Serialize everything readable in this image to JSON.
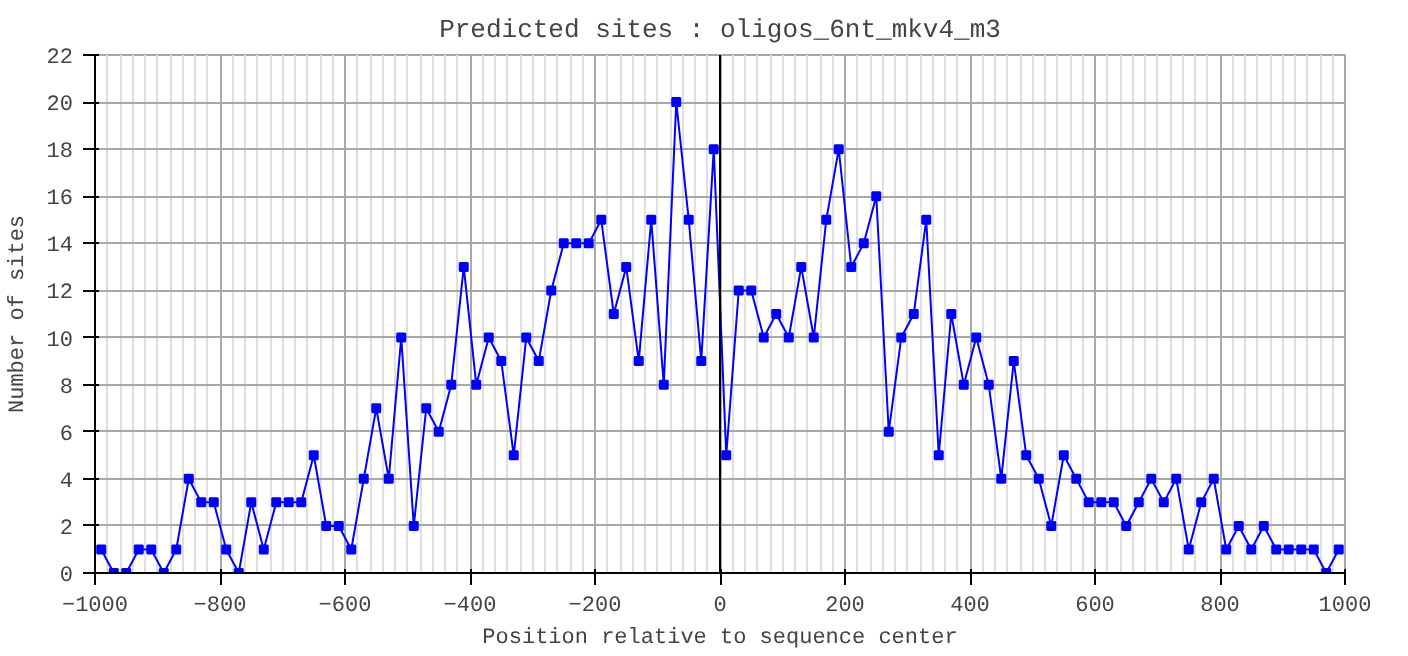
{
  "chart_data": {
    "type": "line",
    "title": "Predicted sites : oligos_6nt_mkv4_m3",
    "xlabel": "Position relative to sequence center",
    "ylabel": "Number of sites",
    "x": [
      -990,
      -970,
      -950,
      -930,
      -910,
      -890,
      -870,
      -850,
      -830,
      -810,
      -790,
      -770,
      -750,
      -730,
      -710,
      -690,
      -670,
      -650,
      -630,
      -610,
      -590,
      -570,
      -550,
      -530,
      -510,
      -490,
      -470,
      -450,
      -430,
      -410,
      -390,
      -370,
      -350,
      -330,
      -310,
      -290,
      -270,
      -250,
      -230,
      -210,
      -190,
      -170,
      -150,
      -130,
      -110,
      -90,
      -70,
      -50,
      -30,
      -10,
      10,
      30,
      50,
      70,
      90,
      110,
      130,
      150,
      170,
      190,
      210,
      230,
      250,
      270,
      290,
      310,
      330,
      350,
      370,
      390,
      410,
      430,
      450,
      470,
      490,
      510,
      530,
      550,
      570,
      590,
      610,
      630,
      650,
      670,
      690,
      710,
      730,
      750,
      770,
      790,
      810,
      830,
      850,
      870,
      890,
      910,
      930,
      950,
      970,
      990
    ],
    "series": [
      {
        "color": "#0000ff",
        "values": [
          1,
          0,
          0,
          1,
          1,
          0,
          1,
          4,
          3,
          3,
          1,
          0,
          3,
          1,
          3,
          3,
          3,
          5,
          2,
          2,
          1,
          4,
          7,
          4,
          10,
          2,
          7,
          6,
          8,
          13,
          8,
          10,
          9,
          5,
          10,
          9,
          12,
          14,
          14,
          14,
          15,
          11,
          13,
          9,
          15,
          8,
          20,
          15,
          9,
          18,
          5,
          12,
          12,
          10,
          11,
          10,
          13,
          10,
          15,
          18,
          13,
          14,
          16,
          6,
          10,
          11,
          15,
          5,
          11,
          8,
          10,
          8,
          4,
          9,
          5,
          4,
          2,
          5,
          4,
          3,
          3,
          3,
          2,
          3,
          4,
          3,
          4,
          1,
          3,
          4,
          1,
          2,
          1,
          2,
          1,
          1,
          1,
          1,
          0,
          1
        ]
      }
    ],
    "xlim": [
      -1000,
      1000
    ],
    "ylim": [
      0,
      22
    ],
    "xticks": [
      -1000,
      -800,
      -600,
      -400,
      -200,
      0,
      200,
      400,
      600,
      800,
      1000
    ],
    "yticks": [
      0,
      2,
      4,
      6,
      8,
      10,
      12,
      14,
      16,
      18,
      20,
      22
    ],
    "ref_lines": [
      {
        "axis": "x",
        "value": 0,
        "color": "#000000"
      }
    ],
    "grid": true,
    "marker": "square",
    "line_style": "solid"
  }
}
